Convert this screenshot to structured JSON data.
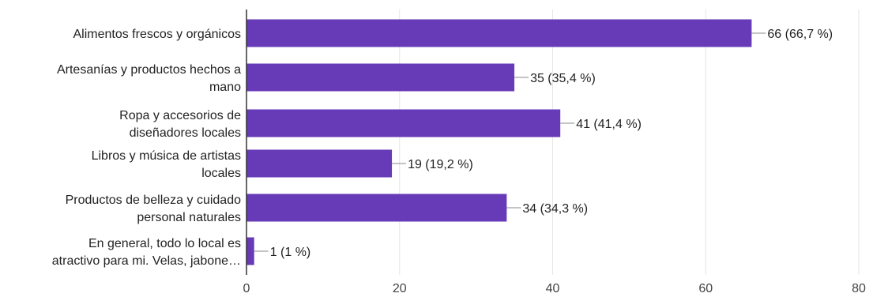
{
  "chart_data": {
    "type": "bar",
    "orientation": "horizontal",
    "title": "",
    "xlabel": "",
    "ylabel": "",
    "categories": [
      [
        "Alimentos frescos y orgánicos"
      ],
      [
        "Artesanías y productos hechos a",
        "mano"
      ],
      [
        "Ropa y accesorios de",
        "diseñadores locales"
      ],
      [
        "Libros y música de artistas",
        "locales"
      ],
      [
        "Productos de belleza y cuidado",
        "personal naturales"
      ],
      [
        "En general, todo lo local es",
        "atractivo para mi. Velas, jabone…"
      ]
    ],
    "values": [
      66,
      35,
      41,
      19,
      34,
      1
    ],
    "data_labels": [
      "66 (66,7 %)",
      "35 (35,4 %)",
      "41 (41,4 %)",
      "19 (19,2 %)",
      "34 (34,3 %)",
      "1 (1 %)"
    ],
    "xlim": [
      0,
      80
    ],
    "xticks": [
      0,
      20,
      40,
      60,
      80
    ],
    "grid": true,
    "colors": {
      "bar": "#673ab7",
      "grid": "#e6e6e6",
      "axis": "#333333",
      "leader": "#888888"
    }
  }
}
